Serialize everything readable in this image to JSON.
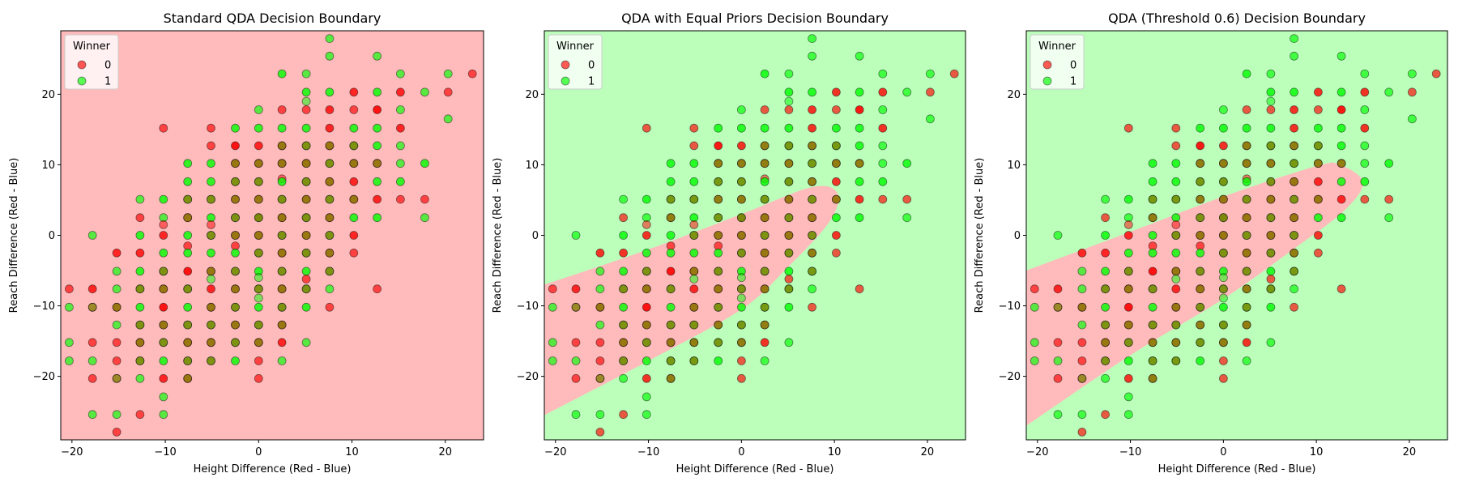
{
  "figure": {
    "background": "#ffffff"
  },
  "colors": {
    "class0_region": "#ffbbbb",
    "class1_region": "#bbffbb",
    "class0_point": "#ff0000",
    "class1_point": "#00ff00"
  },
  "chart_data": [
    {
      "type": "scatter",
      "title": "Standard QDA Decision Boundary",
      "xlabel": "Height Difference (Red - Blue)",
      "ylabel": "Reach Difference (Red - Blue)",
      "xlim": [
        -21.2,
        24.1
      ],
      "ylim": [
        -29.0,
        29.0
      ],
      "xticks": [
        -20,
        -10,
        0,
        10,
        20
      ],
      "yticks": [
        -20,
        -10,
        0,
        10,
        20
      ],
      "background_region": "class0",
      "region": null,
      "legend": {
        "title": "Winner",
        "labels": [
          "0",
          "1"
        ],
        "position": "top-left"
      }
    },
    {
      "type": "scatter",
      "title": "QDA with Equal Priors Decision Boundary",
      "xlabel": "Height Difference (Red - Blue)",
      "ylabel": "Reach Difference (Red - Blue)",
      "xlim": [
        -21.2,
        24.1
      ],
      "ylim": [
        -29.0,
        29.0
      ],
      "xticks": [
        -20,
        -10,
        0,
        10,
        20
      ],
      "yticks": [
        -20,
        -10,
        0,
        10,
        20
      ],
      "background_region": "class1",
      "region": {
        "class": "class0",
        "boundary": [
          [
            -21.2,
            -7.0
          ],
          [
            -10,
            -2.0
          ],
          [
            0,
            3.0
          ],
          [
            7.5,
            6.8
          ],
          [
            10.3,
            6.0
          ],
          [
            9.5,
            2.0
          ],
          [
            5.0,
            -4.5
          ],
          [
            0,
            -10.5
          ],
          [
            -10,
            -17.8
          ],
          [
            -21.2,
            -25.5
          ]
        ]
      },
      "legend": {
        "title": "Winner",
        "labels": [
          "0",
          "1"
        ],
        "position": "top-left"
      }
    },
    {
      "type": "scatter",
      "title": "QDA (Threshold 0.6) Decision Boundary",
      "xlabel": "Height Difference (Red - Blue)",
      "ylabel": "Reach Difference (Red - Blue)",
      "xlim": [
        -21.2,
        24.1
      ],
      "ylim": [
        -29.0,
        29.0
      ],
      "xticks": [
        -20,
        -10,
        0,
        10,
        20
      ],
      "yticks": [
        -20,
        -10,
        0,
        10,
        20
      ],
      "background_region": "class1",
      "region": {
        "class": "class0",
        "boundary": [
          [
            -21.2,
            -5.0
          ],
          [
            -10,
            0.5
          ],
          [
            0,
            5.5
          ],
          [
            10,
            9.8
          ],
          [
            12.5,
            10.0
          ],
          [
            15,
            7.5
          ],
          [
            13.0,
            3.5
          ],
          [
            7.5,
            -2.0
          ],
          [
            0,
            -9.0
          ],
          [
            -10,
            -17.0
          ],
          [
            -21.2,
            -27.0
          ]
        ]
      },
      "legend": {
        "title": "Winner",
        "labels": [
          "0",
          "1"
        ],
        "position": "top-left"
      }
    }
  ],
  "points": [
    [
      -20.3,
      -7.6,
      0,
      0.65
    ],
    [
      -20.3,
      -10.2,
      1,
      0.65
    ],
    [
      -20.3,
      -15.2,
      1,
      0.65
    ],
    [
      -20.3,
      -17.8,
      1,
      0.65
    ],
    [
      -17.8,
      0.0,
      1,
      0.65
    ],
    [
      -17.8,
      -7.6,
      0,
      0.8
    ],
    [
      -17.8,
      -10.2,
      1,
      0.65
    ],
    [
      -17.8,
      -10.2,
      0,
      0.4
    ],
    [
      -17.8,
      -15.2,
      0,
      0.65
    ],
    [
      -17.8,
      -17.8,
      1,
      0.65
    ],
    [
      -17.8,
      -20.3,
      0,
      0.65
    ],
    [
      -17.8,
      -25.4,
      1,
      0.65
    ],
    [
      -15.2,
      -2.5,
      0,
      0.8
    ],
    [
      -15.2,
      -5.1,
      1,
      0.65
    ],
    [
      -15.2,
      -7.6,
      1,
      0.65
    ],
    [
      -15.2,
      -10.2,
      1,
      0.8
    ],
    [
      -15.2,
      -10.2,
      0,
      0.5
    ],
    [
      -15.2,
      -12.7,
      1,
      0.65
    ],
    [
      -15.2,
      -15.2,
      0,
      0.65
    ],
    [
      -15.2,
      -17.8,
      0,
      0.65
    ],
    [
      -15.2,
      -20.3,
      1,
      0.65
    ],
    [
      -15.2,
      -20.3,
      0,
      0.4
    ],
    [
      -15.2,
      -25.4,
      1,
      0.65
    ],
    [
      -15.2,
      -27.9,
      0,
      0.65
    ],
    [
      -12.7,
      5.1,
      1,
      0.65
    ],
    [
      -12.7,
      2.5,
      0,
      0.65
    ],
    [
      -12.7,
      0.0,
      1,
      0.8
    ],
    [
      -12.7,
      -2.5,
      0,
      0.8
    ],
    [
      -12.7,
      -5.1,
      1,
      0.8
    ],
    [
      -12.7,
      -7.6,
      0,
      0.8
    ],
    [
      -12.7,
      -7.6,
      1,
      0.5
    ],
    [
      -12.7,
      -10.2,
      1,
      0.8
    ],
    [
      -12.7,
      -12.7,
      0,
      0.8
    ],
    [
      -12.7,
      -12.7,
      1,
      0.5
    ],
    [
      -12.7,
      -15.2,
      1,
      0.8
    ],
    [
      -12.7,
      -15.2,
      0,
      0.5
    ],
    [
      -12.7,
      -17.8,
      0,
      0.8
    ],
    [
      -12.7,
      -17.8,
      1,
      0.5
    ],
    [
      -12.7,
      -20.3,
      1,
      0.65
    ],
    [
      -12.7,
      -25.4,
      0,
      0.65
    ],
    [
      -10.2,
      15.2,
      0,
      0.65
    ],
    [
      -10.2,
      5.1,
      1,
      0.8
    ],
    [
      -10.2,
      2.5,
      1,
      0.65
    ],
    [
      -10.2,
      1.5,
      0,
      0.5
    ],
    [
      -10.2,
      0.0,
      0,
      0.8
    ],
    [
      -10.2,
      -2.5,
      1,
      0.8
    ],
    [
      -10.2,
      -5.1,
      0,
      0.8
    ],
    [
      -10.2,
      -5.1,
      1,
      0.5
    ],
    [
      -10.2,
      -7.6,
      1,
      0.8
    ],
    [
      -10.2,
      -7.6,
      0,
      0.5
    ],
    [
      -10.2,
      -10.2,
      0,
      0.9
    ],
    [
      -10.2,
      -12.7,
      1,
      0.8
    ],
    [
      -10.2,
      -12.7,
      0,
      0.5
    ],
    [
      -10.2,
      -15.2,
      0,
      0.8
    ],
    [
      -10.2,
      -15.2,
      1,
      0.5
    ],
    [
      -10.2,
      -17.8,
      1,
      0.8
    ],
    [
      -10.2,
      -20.3,
      0,
      0.8
    ],
    [
      -10.2,
      -22.9,
      1,
      0.65
    ],
    [
      -10.2,
      -25.4,
      1,
      0.65
    ],
    [
      -7.6,
      10.2,
      1,
      0.8
    ],
    [
      -7.6,
      7.6,
      1,
      0.8
    ],
    [
      -7.6,
      5.1,
      0,
      0.8
    ],
    [
      -7.6,
      5.1,
      1,
      0.5
    ],
    [
      -7.6,
      2.5,
      1,
      0.8
    ],
    [
      -7.6,
      2.5,
      0,
      0.5
    ],
    [
      -7.6,
      0.0,
      1,
      0.8
    ],
    [
      -7.6,
      -1.5,
      0,
      0.65
    ],
    [
      -7.6,
      -2.5,
      1,
      0.8
    ],
    [
      -7.6,
      -5.1,
      0,
      0.9
    ],
    [
      -7.6,
      -7.6,
      0,
      0.8
    ],
    [
      -7.6,
      -7.6,
      1,
      0.5
    ],
    [
      -7.6,
      -10.2,
      1,
      0.8
    ],
    [
      -7.6,
      -12.7,
      0,
      0.8
    ],
    [
      -7.6,
      -12.7,
      1,
      0.5
    ],
    [
      -7.6,
      -15.2,
      1,
      0.8
    ],
    [
      -7.6,
      -15.2,
      0,
      0.5
    ],
    [
      -7.6,
      -17.8,
      0,
      0.8
    ],
    [
      -7.6,
      -17.8,
      1,
      0.5
    ],
    [
      -7.6,
      -20.3,
      1,
      0.8
    ],
    [
      -7.6,
      -20.3,
      0,
      0.5
    ],
    [
      -5.1,
      15.2,
      0,
      0.65
    ],
    [
      -5.1,
      12.7,
      0,
      0.65
    ],
    [
      -5.1,
      10.2,
      1,
      0.8
    ],
    [
      -5.1,
      7.6,
      1,
      0.8
    ],
    [
      -5.1,
      5.1,
      0,
      0.8
    ],
    [
      -5.1,
      5.1,
      1,
      0.5
    ],
    [
      -5.1,
      2.5,
      1,
      0.8
    ],
    [
      -5.1,
      1.5,
      0,
      0.5
    ],
    [
      -5.1,
      0.0,
      0,
      0.8
    ],
    [
      -5.1,
      0.0,
      1,
      0.5
    ],
    [
      -5.1,
      -2.5,
      1,
      0.8
    ],
    [
      -5.1,
      -5.1,
      1,
      0.8
    ],
    [
      -5.1,
      -5.1,
      0,
      0.5
    ],
    [
      -5.1,
      -6.2,
      1,
      0.5
    ],
    [
      -5.1,
      -7.6,
      0,
      0.8
    ],
    [
      -5.1,
      -10.2,
      1,
      0.8
    ],
    [
      -5.1,
      -10.2,
      0,
      0.5
    ],
    [
      -5.1,
      -12.7,
      0,
      0.8
    ],
    [
      -5.1,
      -12.7,
      1,
      0.5
    ],
    [
      -5.1,
      -15.2,
      1,
      0.8
    ],
    [
      -5.1,
      -15.2,
      0,
      0.5
    ],
    [
      -5.1,
      -17.8,
      0,
      0.8
    ],
    [
      -5.1,
      -17.8,
      1,
      0.5
    ],
    [
      -2.5,
      15.2,
      1,
      0.8
    ],
    [
      -2.5,
      12.7,
      0,
      0.9
    ],
    [
      -2.5,
      10.2,
      1,
      0.8
    ],
    [
      -2.5,
      10.2,
      0,
      0.5
    ],
    [
      -2.5,
      7.6,
      0,
      0.8
    ],
    [
      -2.5,
      7.6,
      1,
      0.5
    ],
    [
      -2.5,
      5.1,
      1,
      0.8
    ],
    [
      -2.5,
      5.1,
      0,
      0.5
    ],
    [
      -2.5,
      2.5,
      0,
      0.8
    ],
    [
      -2.5,
      2.5,
      1,
      0.5
    ],
    [
      -2.5,
      0.0,
      1,
      0.8
    ],
    [
      -2.5,
      0.0,
      0,
      0.5
    ],
    [
      -2.5,
      -1.5,
      0,
      0.65
    ],
    [
      -2.5,
      -2.5,
      1,
      0.8
    ],
    [
      -2.5,
      -5.1,
      0,
      0.8
    ],
    [
      -2.5,
      -5.1,
      1,
      0.5
    ],
    [
      -2.5,
      -7.6,
      1,
      0.8
    ],
    [
      -2.5,
      -7.6,
      0,
      0.5
    ],
    [
      -2.5,
      -10.2,
      0,
      0.8
    ],
    [
      -2.5,
      -10.2,
      1,
      0.5
    ],
    [
      -2.5,
      -12.7,
      1,
      0.8
    ],
    [
      -2.5,
      -12.7,
      0,
      0.5
    ],
    [
      -2.5,
      -15.2,
      0,
      0.8
    ],
    [
      -2.5,
      -15.2,
      1,
      0.5
    ],
    [
      -2.5,
      -17.8,
      1,
      0.8
    ],
    [
      0.0,
      17.8,
      1,
      0.65
    ],
    [
      0.0,
      15.2,
      1,
      0.8
    ],
    [
      0.0,
      12.7,
      0,
      0.8
    ],
    [
      0.0,
      10.2,
      1,
      0.8
    ],
    [
      0.0,
      10.2,
      0,
      0.5
    ],
    [
      0.0,
      7.6,
      0,
      0.8
    ],
    [
      0.0,
      7.6,
      1,
      0.5
    ],
    [
      0.0,
      5.1,
      1,
      0.8
    ],
    [
      0.0,
      5.1,
      0,
      0.5
    ],
    [
      0.0,
      2.5,
      0,
      0.9
    ],
    [
      0.0,
      2.5,
      1,
      0.5
    ],
    [
      0.0,
      0.0,
      1,
      0.8
    ],
    [
      0.0,
      0.0,
      0,
      0.5
    ],
    [
      0.0,
      -2.5,
      0,
      0.8
    ],
    [
      0.0,
      -2.5,
      1,
      0.5
    ],
    [
      0.0,
      -5.1,
      1,
      0.8
    ],
    [
      0.0,
      -6.0,
      1,
      0.5
    ],
    [
      0.0,
      -7.6,
      0,
      0.8
    ],
    [
      0.0,
      -7.6,
      1,
      0.5
    ],
    [
      0.0,
      -8.9,
      1,
      0.5
    ],
    [
      0.0,
      -10.2,
      1,
      0.8
    ],
    [
      0.0,
      -12.7,
      0,
      0.8
    ],
    [
      0.0,
      -12.7,
      1,
      0.5
    ],
    [
      0.0,
      -15.2,
      1,
      0.8
    ],
    [
      0.0,
      -15.2,
      0,
      0.5
    ],
    [
      0.0,
      -17.8,
      0,
      0.65
    ],
    [
      0.0,
      -20.3,
      0,
      0.65
    ],
    [
      2.5,
      22.9,
      1,
      0.8
    ],
    [
      2.5,
      17.8,
      0,
      0.65
    ],
    [
      2.5,
      15.2,
      1,
      0.8
    ],
    [
      2.5,
      12.7,
      1,
      0.8
    ],
    [
      2.5,
      12.7,
      0,
      0.5
    ],
    [
      2.5,
      10.2,
      1,
      0.8
    ],
    [
      2.5,
      10.2,
      0,
      0.5
    ],
    [
      2.5,
      8.0,
      0,
      0.5
    ],
    [
      2.5,
      7.6,
      1,
      0.8
    ],
    [
      2.5,
      5.1,
      0,
      0.8
    ],
    [
      2.5,
      5.1,
      1,
      0.5
    ],
    [
      2.5,
      2.5,
      1,
      0.8
    ],
    [
      2.5,
      2.5,
      0,
      0.5
    ],
    [
      2.5,
      0.0,
      0,
      0.8
    ],
    [
      2.5,
      0.0,
      1,
      0.5
    ],
    [
      2.5,
      -2.5,
      1,
      0.8
    ],
    [
      2.5,
      -2.5,
      0,
      0.5
    ],
    [
      2.5,
      -5.1,
      0,
      0.8
    ],
    [
      2.5,
      -5.1,
      1,
      0.5
    ],
    [
      2.5,
      -7.6,
      1,
      0.8
    ],
    [
      2.5,
      -7.6,
      0,
      0.5
    ],
    [
      2.5,
      -10.2,
      0,
      0.8
    ],
    [
      2.5,
      -10.2,
      1,
      0.5
    ],
    [
      2.5,
      -12.7,
      1,
      0.8
    ],
    [
      2.5,
      -12.7,
      0,
      0.5
    ],
    [
      2.5,
      -15.2,
      0,
      0.8
    ],
    [
      2.5,
      -17.8,
      1,
      0.65
    ],
    [
      5.1,
      22.9,
      1,
      0.65
    ],
    [
      5.1,
      20.3,
      1,
      0.8
    ],
    [
      5.1,
      19.0,
      1,
      0.5
    ],
    [
      5.1,
      17.8,
      0,
      0.65
    ],
    [
      5.1,
      15.2,
      1,
      0.8
    ],
    [
      5.1,
      12.7,
      0,
      0.8
    ],
    [
      5.1,
      12.7,
      1,
      0.5
    ],
    [
      5.1,
      10.2,
      1,
      0.8
    ],
    [
      5.1,
      10.2,
      0,
      0.5
    ],
    [
      5.1,
      7.6,
      0,
      0.8
    ],
    [
      5.1,
      7.6,
      1,
      0.5
    ],
    [
      5.1,
      5.1,
      1,
      0.8
    ],
    [
      5.1,
      5.1,
      0,
      0.5
    ],
    [
      5.1,
      2.5,
      0,
      0.8
    ],
    [
      5.1,
      2.5,
      1,
      0.5
    ],
    [
      5.1,
      0.0,
      1,
      0.8
    ],
    [
      5.1,
      0.0,
      0,
      0.5
    ],
    [
      5.1,
      -2.5,
      0,
      0.8
    ],
    [
      5.1,
      -2.5,
      1,
      0.5
    ],
    [
      5.1,
      -5.1,
      1,
      0.8
    ],
    [
      5.1,
      -6.2,
      0,
      0.65
    ],
    [
      5.1,
      -7.6,
      0,
      0.8
    ],
    [
      5.1,
      -7.6,
      1,
      0.5
    ],
    [
      5.1,
      -10.2,
      1,
      0.8
    ],
    [
      5.1,
      -15.2,
      1,
      0.65
    ],
    [
      7.6,
      27.9,
      1,
      0.65
    ],
    [
      7.6,
      25.4,
      1,
      0.65
    ],
    [
      7.6,
      20.3,
      1,
      0.8
    ],
    [
      7.6,
      17.8,
      0,
      0.8
    ],
    [
      7.6,
      15.2,
      0,
      0.8
    ],
    [
      7.6,
      12.7,
      1,
      0.8
    ],
    [
      7.6,
      12.7,
      0,
      0.5
    ],
    [
      7.6,
      10.2,
      0,
      0.8
    ],
    [
      7.6,
      10.2,
      1,
      0.5
    ],
    [
      7.6,
      7.6,
      1,
      0.8
    ],
    [
      7.6,
      7.6,
      0,
      0.5
    ],
    [
      7.6,
      5.1,
      0,
      0.8
    ],
    [
      7.6,
      5.1,
      1,
      0.5
    ],
    [
      7.6,
      2.5,
      1,
      0.8
    ],
    [
      7.6,
      2.5,
      0,
      0.5
    ],
    [
      7.6,
      0.0,
      0,
      0.8
    ],
    [
      7.6,
      0.0,
      1,
      0.5
    ],
    [
      7.6,
      -2.5,
      1,
      0.8
    ],
    [
      7.6,
      -2.5,
      0,
      0.5
    ],
    [
      7.6,
      -5.1,
      0,
      0.8
    ],
    [
      7.6,
      -5.1,
      1,
      0.5
    ],
    [
      7.6,
      -7.6,
      1,
      0.65
    ],
    [
      7.6,
      -10.2,
      0,
      0.65
    ],
    [
      10.2,
      20.3,
      0,
      0.8
    ],
    [
      10.2,
      17.8,
      0,
      0.65
    ],
    [
      10.2,
      15.2,
      1,
      0.8
    ],
    [
      10.2,
      12.7,
      0,
      0.8
    ],
    [
      10.2,
      12.7,
      1,
      0.5
    ],
    [
      10.2,
      10.2,
      1,
      0.8
    ],
    [
      10.2,
      10.2,
      0,
      0.5
    ],
    [
      10.2,
      7.6,
      0,
      0.8
    ],
    [
      10.2,
      5.1,
      1,
      0.8
    ],
    [
      10.2,
      5.1,
      0,
      0.5
    ],
    [
      10.2,
      2.5,
      1,
      0.8
    ],
    [
      10.2,
      0.0,
      0,
      0.8
    ],
    [
      10.2,
      -2.5,
      0,
      0.65
    ],
    [
      12.7,
      25.4,
      1,
      0.65
    ],
    [
      12.7,
      20.3,
      1,
      0.8
    ],
    [
      12.7,
      17.8,
      0,
      0.9
    ],
    [
      12.7,
      15.2,
      1,
      0.8
    ],
    [
      12.7,
      12.7,
      1,
      0.8
    ],
    [
      12.7,
      10.2,
      1,
      0.8
    ],
    [
      12.7,
      10.2,
      0,
      0.5
    ],
    [
      12.7,
      7.6,
      1,
      0.8
    ],
    [
      12.7,
      5.1,
      0,
      0.8
    ],
    [
      12.7,
      2.5,
      1,
      0.8
    ],
    [
      12.7,
      -7.6,
      0,
      0.65
    ],
    [
      15.2,
      22.9,
      1,
      0.65
    ],
    [
      15.2,
      20.3,
      0,
      0.8
    ],
    [
      15.2,
      17.8,
      1,
      0.65
    ],
    [
      15.2,
      15.2,
      0,
      0.8
    ],
    [
      15.2,
      12.7,
      1,
      0.65
    ],
    [
      15.2,
      10.2,
      1,
      0.65
    ],
    [
      15.2,
      7.6,
      1,
      0.8
    ],
    [
      15.2,
      5.1,
      0,
      0.65
    ],
    [
      17.8,
      20.3,
      1,
      0.65
    ],
    [
      17.8,
      10.2,
      1,
      0.8
    ],
    [
      17.8,
      5.1,
      0,
      0.65
    ],
    [
      17.8,
      2.5,
      1,
      0.65
    ],
    [
      20.3,
      22.9,
      1,
      0.65
    ],
    [
      20.3,
      20.3,
      0,
      0.65
    ],
    [
      20.3,
      16.5,
      1,
      0.65
    ],
    [
      22.9,
      22.9,
      0,
      0.65
    ]
  ]
}
